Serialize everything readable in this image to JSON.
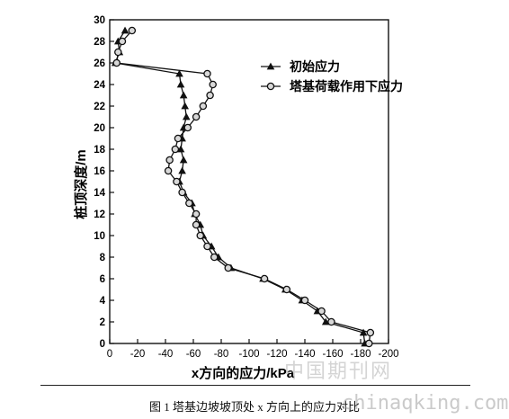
{
  "caption": "图 1 塔基边坡坡顶处 x 方向上的应力对比",
  "watermark_cn": "中国期刊网",
  "watermark_url": "chinaqking.com",
  "chart_data": {
    "type": "line",
    "title": "",
    "xlabel": "x方向的应力/kPa",
    "ylabel": "桩顶深度/m",
    "xlim": [
      0,
      -200
    ],
    "ylim": [
      0,
      30
    ],
    "x_ticks": [
      0,
      -20,
      -40,
      -60,
      -80,
      -100,
      -120,
      -140,
      -160,
      -180,
      -200
    ],
    "x_tick_labels": [
      "0",
      "-20",
      "-40",
      "-60",
      "-80",
      "-100",
      "-120",
      "-140",
      "-160",
      "-180",
      "-200"
    ],
    "y_ticks": [
      0,
      2,
      4,
      6,
      8,
      10,
      12,
      14,
      16,
      18,
      20,
      22,
      24,
      26,
      28,
      30
    ],
    "y_tick_labels": [
      "0",
      "2",
      "4",
      "6",
      "8",
      "10",
      "12",
      "14",
      "16",
      "18",
      "20",
      "22",
      "24",
      "26",
      "28",
      "30"
    ],
    "legend_position": "top-right",
    "series": [
      {
        "name": "初始应力",
        "marker": "triangle",
        "color": "#111111",
        "points": [
          {
            "depth": 0,
            "stress": -183
          },
          {
            "depth": 1,
            "stress": -182
          },
          {
            "depth": 2,
            "stress": -155
          },
          {
            "depth": 3,
            "stress": -149
          },
          {
            "depth": 4,
            "stress": -138
          },
          {
            "depth": 5,
            "stress": -126
          },
          {
            "depth": 6,
            "stress": -110
          },
          {
            "depth": 7,
            "stress": -87
          },
          {
            "depth": 8,
            "stress": -78
          },
          {
            "depth": 9,
            "stress": -73
          },
          {
            "depth": 10,
            "stress": -67
          },
          {
            "depth": 11,
            "stress": -65
          },
          {
            "depth": 12,
            "stress": -61
          },
          {
            "depth": 13,
            "stress": -59
          },
          {
            "depth": 14,
            "stress": -53
          },
          {
            "depth": 15,
            "stress": -50
          },
          {
            "depth": 16,
            "stress": -52
          },
          {
            "depth": 17,
            "stress": -53
          },
          {
            "depth": 18,
            "stress": -51
          },
          {
            "depth": 19,
            "stress": -52
          },
          {
            "depth": 20,
            "stress": -53
          },
          {
            "depth": 21,
            "stress": -55
          },
          {
            "depth": 22,
            "stress": -54
          },
          {
            "depth": 23,
            "stress": -53
          },
          {
            "depth": 24,
            "stress": -51
          },
          {
            "depth": 25,
            "stress": -50
          },
          {
            "depth": 26,
            "stress": -4
          },
          {
            "depth": 27,
            "stress": -7
          },
          {
            "depth": 28,
            "stress": -6
          },
          {
            "depth": 29,
            "stress": -11
          }
        ]
      },
      {
        "name": "塔基荷载作用下应力",
        "marker": "circle",
        "color": "#111111",
        "points": [
          {
            "depth": 0,
            "stress": -186
          },
          {
            "depth": 1,
            "stress": -187
          },
          {
            "depth": 2,
            "stress": -159
          },
          {
            "depth": 3,
            "stress": -152
          },
          {
            "depth": 4,
            "stress": -140
          },
          {
            "depth": 5,
            "stress": -127
          },
          {
            "depth": 6,
            "stress": -111
          },
          {
            "depth": 7,
            "stress": -85
          },
          {
            "depth": 8,
            "stress": -75
          },
          {
            "depth": 9,
            "stress": -70
          },
          {
            "depth": 10,
            "stress": -65
          },
          {
            "depth": 11,
            "stress": -62
          },
          {
            "depth": 12,
            "stress": -62
          },
          {
            "depth": 13,
            "stress": -57
          },
          {
            "depth": 14,
            "stress": -52
          },
          {
            "depth": 15,
            "stress": -48
          },
          {
            "depth": 16,
            "stress": -42
          },
          {
            "depth": 17,
            "stress": -43
          },
          {
            "depth": 18,
            "stress": -47
          },
          {
            "depth": 19,
            "stress": -49
          },
          {
            "depth": 20,
            "stress": -56
          },
          {
            "depth": 21,
            "stress": -62
          },
          {
            "depth": 22,
            "stress": -67
          },
          {
            "depth": 23,
            "stress": -72
          },
          {
            "depth": 24,
            "stress": -74
          },
          {
            "depth": 25,
            "stress": -70
          },
          {
            "depth": 26,
            "stress": -5
          },
          {
            "depth": 27,
            "stress": -6
          },
          {
            "depth": 28,
            "stress": -9
          },
          {
            "depth": 29,
            "stress": -16
          }
        ]
      }
    ]
  }
}
